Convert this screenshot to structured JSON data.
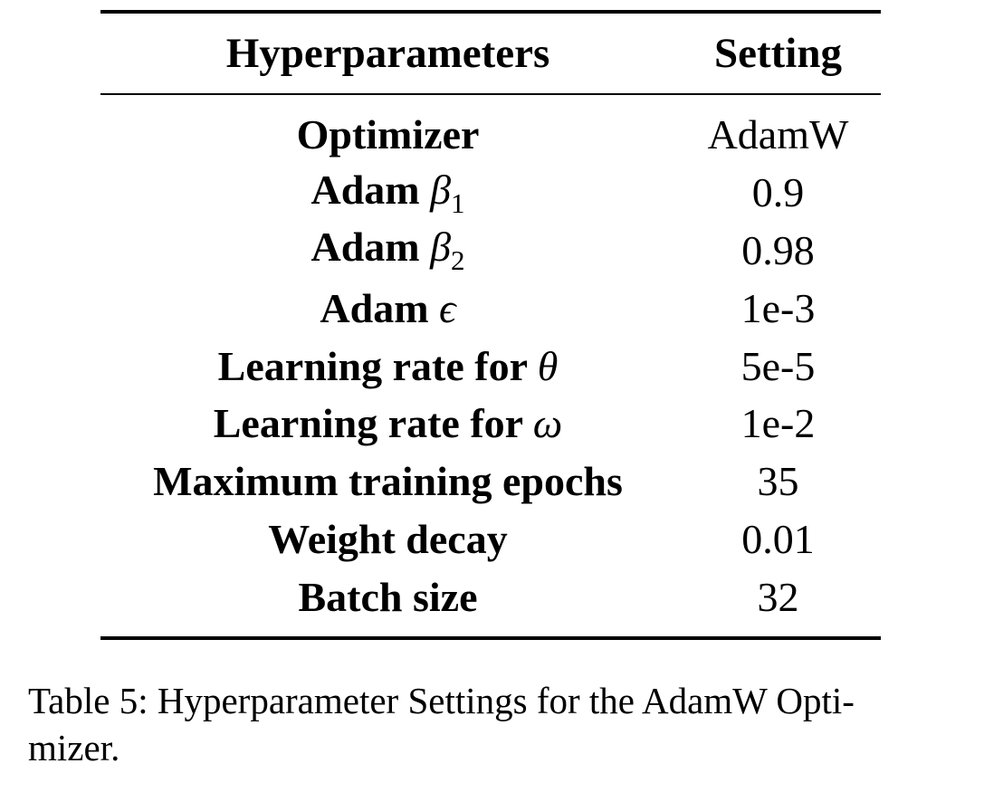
{
  "table": {
    "headers": {
      "name": "Hyperparameters",
      "value": "Setting"
    },
    "rows": [
      {
        "name": "Optimizer",
        "symbol": "",
        "subscript": "",
        "value": "AdamW"
      },
      {
        "name": "Adam ",
        "symbol": "β",
        "subscript": "1",
        "value": "0.9"
      },
      {
        "name": "Adam ",
        "symbol": "β",
        "subscript": "2",
        "value": "0.98"
      },
      {
        "name": "Adam ",
        "symbol": "ϵ",
        "subscript": "",
        "value": "1e-3"
      },
      {
        "name": "Learning rate for ",
        "symbol": "θ",
        "subscript": "",
        "value": "5e-5"
      },
      {
        "name": "Learning rate for ",
        "symbol": "ω",
        "subscript": "",
        "value": "1e-2"
      },
      {
        "name": "Maximum training epochs",
        "symbol": "",
        "subscript": "",
        "value": "35"
      },
      {
        "name": "Weight decay",
        "symbol": "",
        "subscript": "",
        "value": "0.01"
      },
      {
        "name": "Batch size",
        "symbol": "",
        "subscript": "",
        "value": "32"
      }
    ]
  },
  "caption": {
    "label": "Table 5:",
    "text": "Hyperparameter Settings for the AdamW Opti-mizer."
  }
}
